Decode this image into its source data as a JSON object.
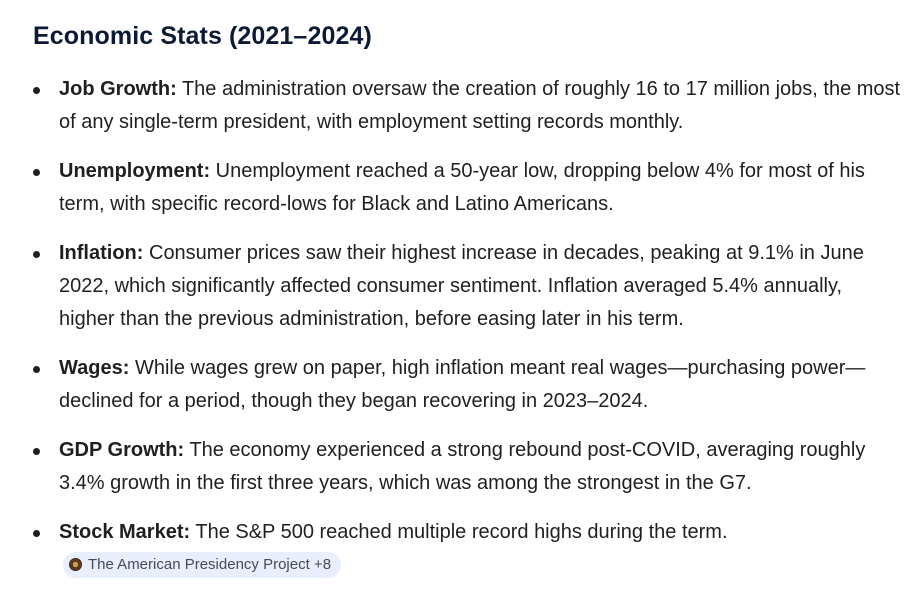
{
  "heading": "Economic Stats (2021–2024)",
  "items": [
    {
      "label": "Job Growth:",
      "text": " The administration oversaw the creation of roughly 16 to 17 million jobs, the most of any single-term president, with employment setting records monthly."
    },
    {
      "label": "Unemployment:",
      "text": " Unemployment reached a 50-year low, dropping below 4% for most of his term, with specific record-lows for Black and Latino Americans."
    },
    {
      "label": "Inflation:",
      "text": " Consumer prices saw their highest increase in decades, peaking at 9.1% in June 2022, which significantly affected consumer sentiment. Inflation averaged 5.4% annually, higher than the previous administration, before easing later in his term."
    },
    {
      "label": "Wages:",
      "text": " While wages grew on paper, high inflation meant real wages—purchasing power—declined for a period, though they began recovering in 2023–2024."
    },
    {
      "label": "GDP Growth:",
      "text": " The economy experienced a strong rebound post-COVID, averaging roughly 3.4% growth in the first three years, which was among the strongest in the G7."
    },
    {
      "label": "Stock Market:",
      "text": " The S&P 500 reached multiple record highs during the term."
    }
  ],
  "source_chip": {
    "label": "The American Presidency Project +8",
    "icon": "presidency-seal-icon"
  }
}
